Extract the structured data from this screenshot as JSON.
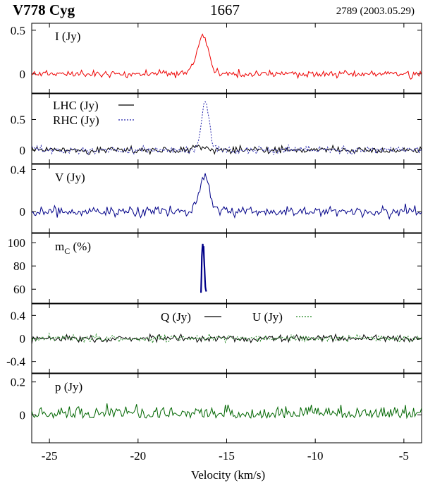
{
  "header": {
    "star": "V778 Cyg",
    "line": "1667",
    "observation": "2789 (2003.05.29)"
  },
  "chart_data": {
    "type": "line",
    "xlabel": "Velocity (km/s)",
    "xlim": [
      -26.0,
      -4.0
    ],
    "xticks": [
      -25,
      -20,
      -15,
      -10,
      -5
    ],
    "panels": [
      {
        "id": "I",
        "label": "I (Jy)",
        "ylim": [
          -0.22,
          0.58
        ],
        "yticks": [
          0,
          0.5
        ],
        "series": [
          {
            "name": "",
            "color": "#ee0000",
            "dash": "",
            "noise": 0.04,
            "seed": 11,
            "features": [
              {
                "center": -16.3,
                "sigma": 0.28,
                "amp": 0.42
              },
              {
                "center": -16.85,
                "sigma": 0.3,
                "amp": 0.08
              }
            ]
          }
        ]
      },
      {
        "id": "LR",
        "label": "",
        "ylim": [
          -0.22,
          0.92
        ],
        "yticks": [
          0,
          0.5
        ],
        "legend": [
          {
            "label": "LHC (Jy)",
            "color": "#000000",
            "dash": ""
          },
          {
            "label": "RHC (Jy)",
            "color": "#2222aa",
            "dash": "2,2"
          }
        ],
        "series": [
          {
            "name": "LHC (Jy)",
            "color": "#000000",
            "dash": "",
            "noise": 0.06,
            "seed": 23,
            "features": [
              {
                "center": -16.6,
                "sigma": 0.4,
                "amp": 0.07
              }
            ]
          },
          {
            "name": "RHC (Jy)",
            "color": "#2222aa",
            "dash": "2,2",
            "noise": 0.06,
            "seed": 37,
            "features": [
              {
                "center": -16.2,
                "sigma": 0.22,
                "amp": 0.8
              }
            ]
          }
        ]
      },
      {
        "id": "V",
        "label": "V (Jy)",
        "ylim": [
          -0.2,
          0.45
        ],
        "yticks": [
          0,
          0.4
        ],
        "series": [
          {
            "name": "",
            "color": "#000088",
            "dash": "",
            "noise": 0.05,
            "seed": 53,
            "features": [
              {
                "center": -16.25,
                "sigma": 0.3,
                "amp": 0.33
              }
            ]
          }
        ]
      },
      {
        "id": "mC",
        "label": "m",
        "label_sub": "C",
        "label_suffix": " (%)",
        "ylim": [
          48,
          108
        ],
        "yticks": [
          60,
          80,
          100
        ],
        "series": [
          {
            "name": "",
            "color": "#000088",
            "dash": "",
            "noise": 0,
            "seed": 0,
            "x": [
              -16.45,
              -16.42,
              -16.4,
              -16.37,
              -16.35,
              -16.33,
              -16.3,
              -16.28,
              -16.25,
              -16.22,
              -16.2,
              -16.18,
              -16.15
            ],
            "y": [
              57,
              72,
              88,
              96,
              99,
              94,
              97,
              88,
              78,
              68,
              62,
              60,
              58
            ]
          }
        ]
      },
      {
        "id": "QU",
        "label": "",
        "ylim": [
          -0.6,
          0.6
        ],
        "yticks": [
          -0.4,
          0,
          0.4
        ],
        "legend_inline": [
          {
            "label": "Q (Jy)",
            "color": "#000000",
            "dash": ""
          },
          {
            "label": "U (Jy)",
            "color": "#228822",
            "dash": "2,2"
          }
        ],
        "series": [
          {
            "name": "Q (Jy)",
            "color": "#000000",
            "dash": "",
            "noise": 0.06,
            "seed": 71,
            "features": []
          },
          {
            "name": "U (Jy)",
            "color": "#228822",
            "dash": "2,2",
            "noise": 0.06,
            "seed": 89,
            "features": []
          }
        ]
      },
      {
        "id": "p",
        "label": "p (Jy)",
        "ylim": [
          -0.17,
          0.25
        ],
        "yticks": [
          0,
          0.2
        ],
        "series": [
          {
            "name": "",
            "color": "#006600",
            "dash": "",
            "noise": 0.045,
            "seed": 97,
            "positive": true,
            "features": []
          }
        ]
      }
    ]
  }
}
